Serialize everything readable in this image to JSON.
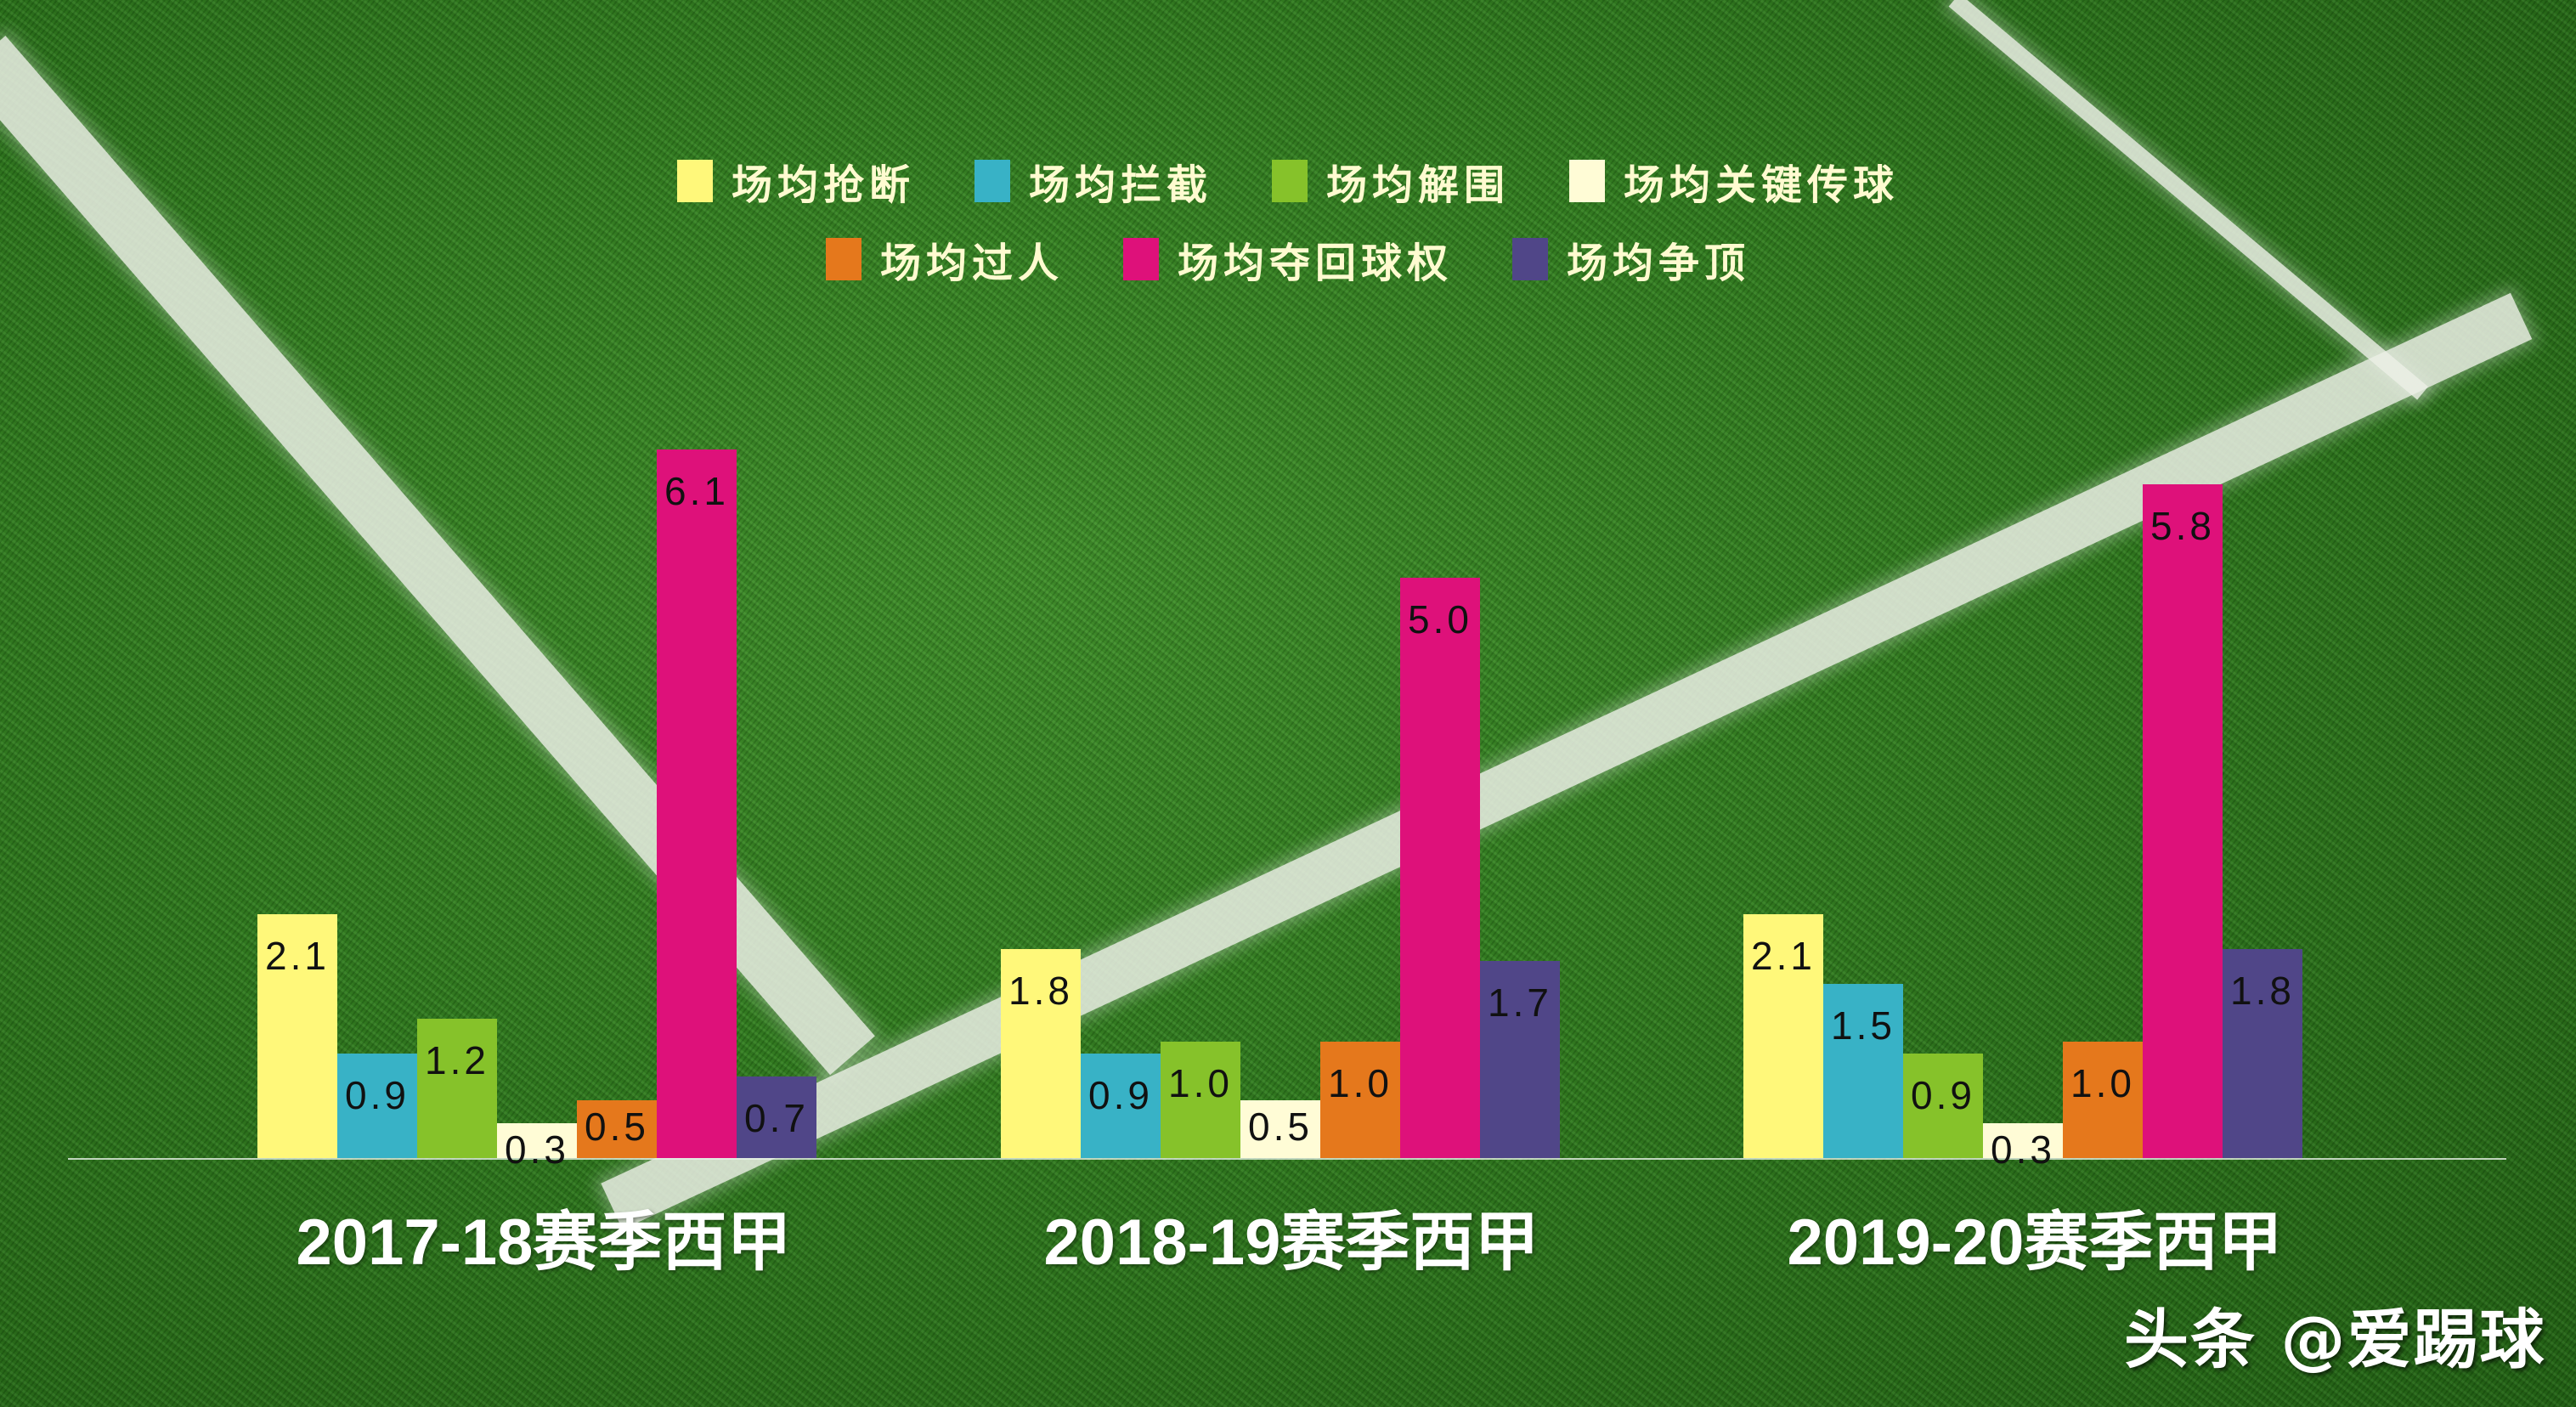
{
  "chart_data": {
    "type": "bar",
    "title": "",
    "xlabel": "",
    "ylabel": "",
    "categories": [
      "2017-18赛季西甲",
      "2018-19赛季西甲",
      "2019-20赛季西甲"
    ],
    "series": [
      {
        "name": "场均抢断",
        "color": "#fff87a",
        "values": [
          2.1,
          1.8,
          2.1
        ]
      },
      {
        "name": "场均拦截",
        "color": "#38b2c6",
        "values": [
          0.9,
          0.9,
          1.5
        ]
      },
      {
        "name": "场均解围",
        "color": "#86c22a",
        "values": [
          1.2,
          1.0,
          0.9
        ]
      },
      {
        "name": "场均关键传球",
        "color": "#fffcd6",
        "values": [
          0.3,
          0.5,
          0.3
        ]
      },
      {
        "name": "场均过人",
        "color": "#e5781c",
        "values": [
          0.5,
          1.0,
          1.0
        ]
      },
      {
        "name": "场均夺回球权",
        "color": "#de117a",
        "values": [
          6.1,
          5.0,
          5.8
        ]
      },
      {
        "name": "场均争顶",
        "color": "#504688",
        "values": [
          0.7,
          1.7,
          1.8
        ]
      }
    ],
    "value_labels": true,
    "grid": false,
    "legend_position": "top",
    "ylim": [
      0,
      7
    ]
  },
  "legend": {
    "row1": [
      {
        "label": "场均抢断",
        "color": "#fff87a"
      },
      {
        "label": "场均拦截",
        "color": "#38b2c6"
      },
      {
        "label": "场均解围",
        "color": "#86c22a"
      },
      {
        "label": "场均关键传球",
        "color": "#fffcd6"
      }
    ],
    "row2": [
      {
        "label": "场均过人",
        "color": "#e5781c"
      },
      {
        "label": "场均夺回球权",
        "color": "#de117a"
      },
      {
        "label": "场均争顶",
        "color": "#504688"
      }
    ]
  },
  "bar_labels": [
    [
      "2.1",
      "0.9",
      "1.2",
      "0.3",
      "0.5",
      "6.1",
      "0.7"
    ],
    [
      "1.8",
      "0.9",
      "1.0",
      "0.5",
      "1.0",
      "5.0",
      "1.7"
    ],
    [
      "2.1",
      "1.5",
      "0.9",
      "0.3",
      "1.0",
      "5.8",
      "1.8"
    ]
  ],
  "watermark": "头条 @爱踢球"
}
